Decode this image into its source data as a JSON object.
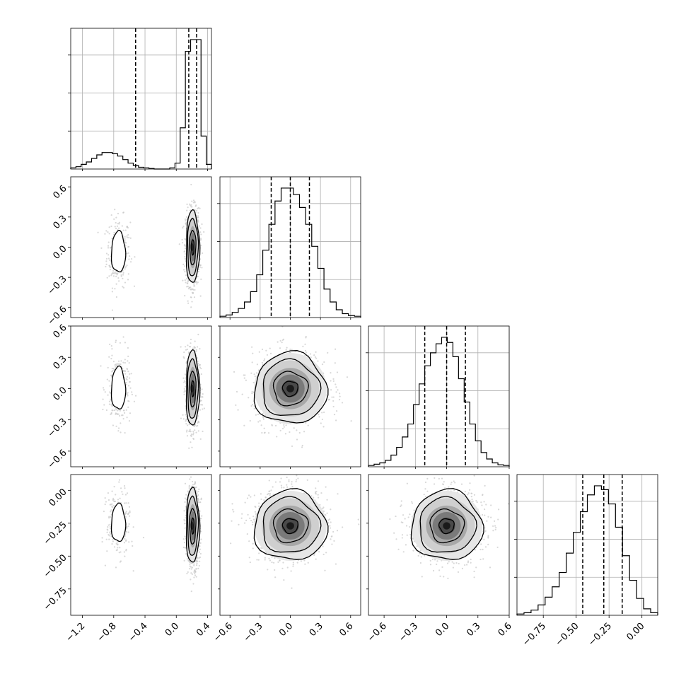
{
  "chart_data": {
    "type": "corner",
    "title": "",
    "variables": [
      {
        "index": 0,
        "range": [
          -1.35,
          0.45
        ],
        "ticks": [
          "-1.2",
          "-0.8",
          "-0.4",
          "0.0",
          "0.4"
        ],
        "tick_values": [
          -1.2,
          -0.8,
          -0.4,
          0.0,
          0.4
        ],
        "quantiles": [
          -0.52,
          0.16,
          0.26
        ],
        "hist": [
          0.01,
          0.02,
          0.04,
          0.06,
          0.09,
          0.12,
          0.14,
          0.14,
          0.13,
          0.11,
          0.08,
          0.05,
          0.03,
          0.015,
          0.01,
          0.005,
          0,
          0,
          0,
          0.01,
          0.05,
          0.35,
          1.0,
          1.1,
          1.1,
          0.28,
          0.04
        ]
      },
      {
        "index": 1,
        "range": [
          -0.7,
          0.7
        ],
        "ticks": [
          "-0.6",
          "-0.3",
          "0.0",
          "0.3",
          "0.6"
        ],
        "tick_values": [
          -0.6,
          -0.3,
          0.0,
          0.3,
          0.6
        ],
        "quantiles": [
          -0.19,
          0.0,
          0.19
        ],
        "hist": [
          0.01,
          0.02,
          0.04,
          0.07,
          0.12,
          0.2,
          0.33,
          0.52,
          0.72,
          0.9,
          1.0,
          1.0,
          0.95,
          0.85,
          0.72,
          0.55,
          0.38,
          0.22,
          0.12,
          0.06,
          0.03,
          0.015,
          0.01
        ]
      },
      {
        "index": 2,
        "range": [
          -0.75,
          0.6
        ],
        "ticks": [
          "-0.6",
          "-0.3",
          "0.0",
          "0.3",
          "0.6"
        ],
        "tick_values": [
          -0.6,
          -0.3,
          0.0,
          0.3,
          0.6
        ],
        "quantiles": [
          -0.21,
          0.0,
          0.18
        ],
        "hist": [
          0.01,
          0.02,
          0.03,
          0.05,
          0.09,
          0.15,
          0.23,
          0.33,
          0.48,
          0.64,
          0.78,
          0.88,
          0.95,
          1.0,
          0.96,
          0.85,
          0.68,
          0.5,
          0.33,
          0.2,
          0.11,
          0.06,
          0.03,
          0.015,
          0.01
        ]
      },
      {
        "index": 3,
        "range": [
          -0.95,
          0.12
        ],
        "ticks": [
          "-0.75",
          "-0.50",
          "-0.25",
          "0.00"
        ],
        "tick_values": [
          -0.75,
          -0.5,
          -0.25,
          0.0
        ],
        "quantiles": [
          -0.45,
          -0.29,
          -0.15
        ],
        "hist": [
          0.01,
          0.02,
          0.04,
          0.08,
          0.14,
          0.22,
          0.33,
          0.48,
          0.64,
          0.8,
          0.93,
          1.0,
          0.97,
          0.86,
          0.68,
          0.46,
          0.27,
          0.13,
          0.05,
          0.02
        ]
      }
    ],
    "pairs": [
      {
        "row": 1,
        "col": 0,
        "blobs": [
          {
            "cx": -0.74,
            "cy": -0.05,
            "sx": 0.075,
            "sy": 0.17,
            "w": 0.3
          },
          {
            "cx": 0.21,
            "cy": 0.0,
            "sx": 0.045,
            "sy": 0.19,
            "w": 1.0
          }
        ]
      },
      {
        "row": 2,
        "col": 0,
        "blobs": [
          {
            "cx": -0.74,
            "cy": 0.0,
            "sx": 0.075,
            "sy": 0.17,
            "w": 0.3
          },
          {
            "cx": 0.21,
            "cy": 0.0,
            "sx": 0.045,
            "sy": 0.19,
            "w": 1.0
          }
        ]
      },
      {
        "row": 2,
        "col": 1,
        "blobs": [
          {
            "cx": 0.0,
            "cy": 0.0,
            "sx": 0.19,
            "sy": 0.18,
            "w": 1.0
          }
        ]
      },
      {
        "row": 3,
        "col": 0,
        "blobs": [
          {
            "cx": -0.74,
            "cy": -0.25,
            "sx": 0.075,
            "sy": 0.12,
            "w": 0.3
          },
          {
            "cx": 0.21,
            "cy": -0.27,
            "sx": 0.045,
            "sy": 0.15,
            "w": 1.0
          }
        ]
      },
      {
        "row": 3,
        "col": 1,
        "blobs": [
          {
            "cx": 0.0,
            "cy": -0.27,
            "sx": 0.19,
            "sy": 0.14,
            "w": 1.0
          }
        ]
      },
      {
        "row": 3,
        "col": 2,
        "blobs": [
          {
            "cx": 0.0,
            "cy": -0.27,
            "sx": 0.18,
            "sy": 0.14,
            "w": 1.0
          }
        ]
      }
    ],
    "grid": true,
    "legend": "none"
  }
}
